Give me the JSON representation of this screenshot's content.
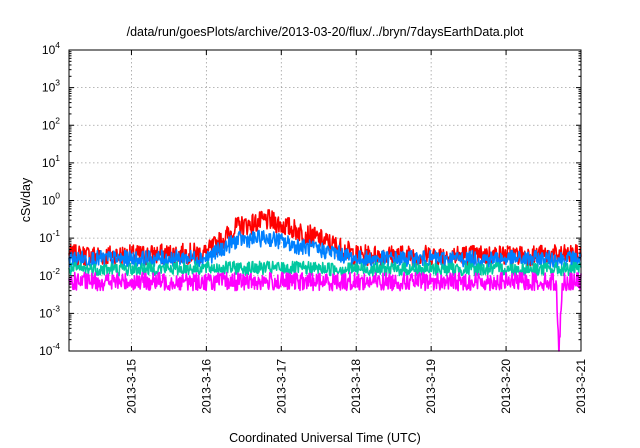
{
  "chart_data": {
    "type": "line",
    "title": "/data/run/goesPlots/archive/2013-03-20/flux/../bryn/7daysEarthData.plot",
    "xlabel": "Coordinated Universal Time (UTC)",
    "ylabel": "cSv/day",
    "yscale": "log",
    "ylim": [
      0.0001,
      10000
    ],
    "yticks": [
      {
        "base": "10",
        "exp": "4",
        "value": 10000
      },
      {
        "base": "10",
        "exp": "3",
        "value": 1000
      },
      {
        "base": "10",
        "exp": "2",
        "value": 100
      },
      {
        "base": "10",
        "exp": "1",
        "value": 10
      },
      {
        "base": "10",
        "exp": "0",
        "value": 1
      },
      {
        "base": "10",
        "exp": "-1",
        "value": 0.1
      },
      {
        "base": "10",
        "exp": "-2",
        "value": 0.01
      },
      {
        "base": "10",
        "exp": "-3",
        "value": 0.001
      },
      {
        "base": "10",
        "exp": "-4",
        "value": 0.0001
      }
    ],
    "xlim": [
      "2013-03-14T04:00",
      "2013-03-21T00:00"
    ],
    "xticks": [
      "2013-3-15",
      "2013-3-16",
      "2013-3-17",
      "2013-3-18",
      "2013-3-19",
      "2013-3-20",
      "2013-3-21"
    ],
    "grid": true,
    "legend": "none",
    "series": [
      {
        "color": "#ff0000",
        "x": [
          "2013-03-14T04:00",
          "2013-03-15T00:00",
          "2013-03-16T00:00",
          "2013-03-16T10:00",
          "2013-03-16T20:00",
          "2013-03-17T06:00",
          "2013-03-17T18:00",
          "2013-03-18T00:00",
          "2013-03-19T00:00",
          "2013-03-20T00:00",
          "2013-03-21T00:00"
        ],
        "values": [
          0.035,
          0.035,
          0.04,
          0.2,
          0.3,
          0.15,
          0.06,
          0.035,
          0.035,
          0.035,
          0.035
        ]
      },
      {
        "color": "#0080ff",
        "x": [
          "2013-03-14T04:00",
          "2013-03-15T00:00",
          "2013-03-16T00:00",
          "2013-03-16T10:00",
          "2013-03-16T20:00",
          "2013-03-17T06:00",
          "2013-03-17T18:00",
          "2013-03-18T00:00",
          "2013-03-19T00:00",
          "2013-03-20T00:00",
          "2013-03-21T00:00"
        ],
        "values": [
          0.028,
          0.028,
          0.03,
          0.09,
          0.1,
          0.06,
          0.04,
          0.028,
          0.028,
          0.028,
          0.028
        ]
      },
      {
        "color": "#00c8a0",
        "x": [
          "2013-03-14T04:00",
          "2013-03-15T00:00",
          "2013-03-16T00:00",
          "2013-03-17T00:00",
          "2013-03-18T00:00",
          "2013-03-19T00:00",
          "2013-03-20T00:00",
          "2013-03-21T00:00"
        ],
        "values": [
          0.015,
          0.015,
          0.016,
          0.016,
          0.015,
          0.015,
          0.015,
          0.015
        ]
      },
      {
        "color": "#ff00ff",
        "x": [
          "2013-03-14T04:00",
          "2013-03-15T00:00",
          "2013-03-16T00:00",
          "2013-03-17T00:00",
          "2013-03-18T00:00",
          "2013-03-19T00:00",
          "2013-03-20T00:00",
          "2013-03-20T16:00",
          "2013-03-20T17:00",
          "2013-03-20T18:00",
          "2013-03-21T00:00"
        ],
        "values": [
          0.007,
          0.007,
          0.007,
          0.007,
          0.007,
          0.007,
          0.007,
          0.007,
          0.0001,
          0.007,
          0.007
        ]
      }
    ]
  }
}
